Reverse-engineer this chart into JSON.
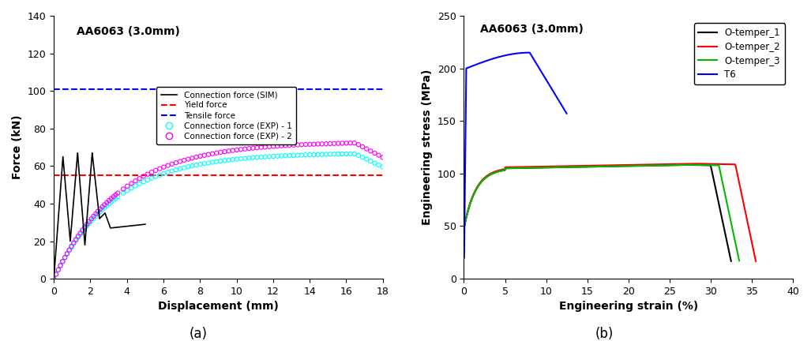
{
  "plot_a": {
    "title": "AA6063 (3.0mm)",
    "xlabel": "Displacement (mm)",
    "ylabel": "Force (kN)",
    "xlim": [
      0,
      18
    ],
    "ylim": [
      0,
      140
    ],
    "xticks": [
      0,
      2,
      4,
      6,
      8,
      10,
      12,
      14,
      16,
      18
    ],
    "yticks": [
      0,
      20,
      40,
      60,
      80,
      100,
      120,
      140
    ],
    "yield_force": 55,
    "tensile_force": 101,
    "legend_labels": [
      "Connection force (SIM)",
      "Yield force",
      "Tensile force",
      "Connection force (EXP) - 1",
      "Connection force (EXP) - 2"
    ],
    "sim_color": "#000000",
    "yield_color": "#ff0000",
    "tensile_color": "#0000ff",
    "exp1_color": "#00ffff",
    "exp2_color": "#ff00ff"
  },
  "plot_b": {
    "title": "AA6063 (3.0mm)",
    "xlabel": "Engineering strain (%)",
    "ylabel": "Engineering stress (MPa)",
    "xlim": [
      0,
      40
    ],
    "ylim": [
      0,
      250
    ],
    "xticks": [
      0,
      5,
      10,
      15,
      20,
      25,
      30,
      35,
      40
    ],
    "yticks": [
      0,
      50,
      100,
      150,
      200,
      250
    ],
    "legend_labels": [
      "O-temper_1",
      "O-temper_2",
      "O-temper_3",
      "T6"
    ],
    "o1_color": "#000000",
    "o2_color": "#ff0000",
    "o3_color": "#00bb00",
    "t6_color": "#0000ff"
  },
  "label_a": "(a)",
  "label_b": "(b)"
}
